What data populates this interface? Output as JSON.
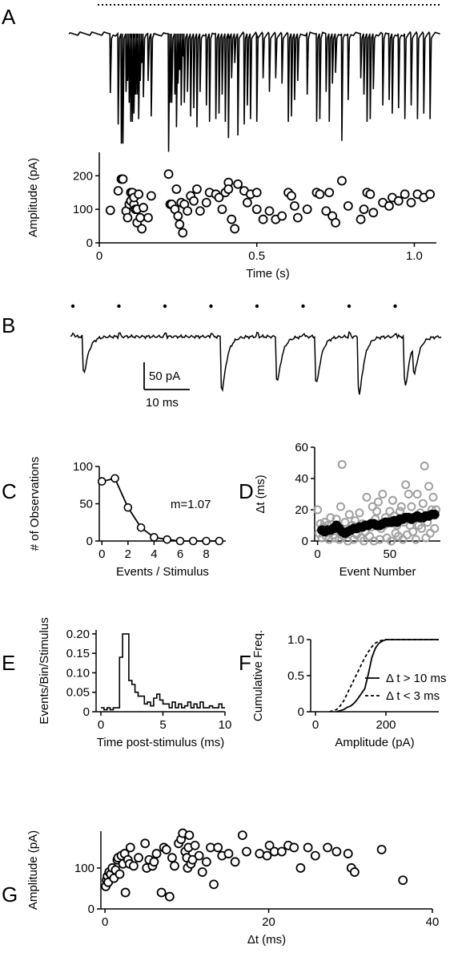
{
  "panels": [
    {
      "id": "A",
      "label": "A"
    },
    {
      "id": "B",
      "label": "B"
    },
    {
      "id": "C",
      "label": "C"
    },
    {
      "id": "D",
      "label": "D"
    },
    {
      "id": "E",
      "label": "E"
    },
    {
      "id": "F",
      "label": "F"
    },
    {
      "id": "G",
      "label": "G"
    }
  ],
  "chart_data": [
    {
      "panel": "A",
      "type": "scatter",
      "title": "",
      "xlabel": "Time (s)",
      "ylabel": "Amplitude (pA)",
      "xlim": [
        0,
        1.07
      ],
      "ylim": [
        0,
        270
      ],
      "xticks": [
        0,
        0.5,
        1.0
      ],
      "xtick_labels": [
        "0",
        "0.5",
        "1.0"
      ],
      "yticks": [
        0,
        100,
        200
      ],
      "ytick_labels": [
        "0",
        "100",
        "200"
      ],
      "marker": "open-circle",
      "grid": false,
      "x": [
        0.035,
        0.06,
        0.07,
        0.075,
        0.085,
        0.09,
        0.095,
        0.1,
        0.1,
        0.105,
        0.11,
        0.11,
        0.115,
        0.12,
        0.12,
        0.125,
        0.13,
        0.135,
        0.14,
        0.155,
        0.165,
        0.22,
        0.225,
        0.23,
        0.24,
        0.245,
        0.25,
        0.255,
        0.26,
        0.265,
        0.27,
        0.28,
        0.29,
        0.3,
        0.31,
        0.32,
        0.34,
        0.35,
        0.37,
        0.38,
        0.39,
        0.4,
        0.41,
        0.41,
        0.42,
        0.43,
        0.44,
        0.46,
        0.47,
        0.48,
        0.5,
        0.5,
        0.52,
        0.54,
        0.56,
        0.58,
        0.6,
        0.61,
        0.62,
        0.63,
        0.66,
        0.69,
        0.7,
        0.72,
        0.73,
        0.74,
        0.75,
        0.77,
        0.79,
        0.83,
        0.84,
        0.85,
        0.86,
        0.87,
        0.9,
        0.92,
        0.93,
        0.95,
        0.97,
        0.99,
        1.01,
        1.03,
        1.05
      ],
      "y": [
        97,
        155,
        190,
        190,
        95,
        75,
        115,
        150,
        125,
        150,
        115,
        135,
        100,
        100,
        60,
        145,
        75,
        42,
        105,
        75,
        140,
        205,
        115,
        115,
        100,
        160,
        80,
        55,
        120,
        30,
        115,
        95,
        140,
        125,
        160,
        95,
        120,
        150,
        145,
        135,
        100,
        150,
        180,
        160,
        70,
        42,
        175,
        155,
        120,
        145,
        100,
        150,
        70,
        95,
        70,
        80,
        150,
        140,
        110,
        75,
        100,
        150,
        145,
        95,
        150,
        80,
        60,
        185,
        110,
        70,
        100,
        150,
        145,
        90,
        120,
        110,
        135,
        125,
        145,
        120,
        145,
        135,
        145
      ]
    },
    {
      "panel": "B",
      "type": "line",
      "title": "",
      "xlabel": "",
      "ylabel": "",
      "scalebar": {
        "y_label": "50 pA",
        "x_label": "10 ms"
      },
      "stimulus_times_ms": [
        0,
        10,
        20,
        30,
        40,
        50,
        60,
        70
      ],
      "responses": [
        {
          "stim": 0,
          "delay_ms": 2.0,
          "amplitude_pA": 80
        },
        {
          "stim": 3,
          "delay_ms": 2.0,
          "amplitude_pA": 120
        },
        {
          "stim": 4,
          "delay_ms": 4.0,
          "amplitude_pA": 100
        },
        {
          "stim": 5,
          "delay_ms": 2.5,
          "amplitude_pA": 105
        },
        {
          "stim": 6,
          "delay_ms": 1.8,
          "amplitude_pA": 130
        },
        {
          "stim": 7,
          "delay_ms": 1.8,
          "amplitude_pA": 110
        },
        {
          "stim": 7,
          "delay_ms": 3.8,
          "amplitude_pA": 65
        }
      ]
    },
    {
      "panel": "C",
      "type": "line",
      "title": "",
      "xlabel": "Events / Stimulus",
      "ylabel": "# of Observations",
      "xlim": [
        -0.2,
        9.5
      ],
      "ylim": [
        0,
        100
      ],
      "xticks": [
        0,
        2,
        4,
        6,
        8
      ],
      "xtick_labels": [
        "0",
        "2",
        "4",
        "6",
        "8"
      ],
      "yticks": [
        0,
        50,
        100
      ],
      "ytick_labels": [
        "0",
        "50",
        "100"
      ],
      "annotation": "m=1.07",
      "x": [
        0,
        1,
        2,
        3,
        4,
        5,
        6,
        7,
        8,
        9
      ],
      "y": [
        80,
        84,
        45,
        18,
        5,
        2,
        0,
        0,
        0,
        0
      ]
    },
    {
      "panel": "D",
      "type": "scatter",
      "title": "",
      "xlabel": "Event Number",
      "ylabel": "Δt (ms)",
      "xlim": [
        -2,
        85
      ],
      "ylim": [
        0,
        60
      ],
      "xticks": [
        0,
        50
      ],
      "xtick_labels": [
        "0",
        "50"
      ],
      "yticks": [
        0,
        20,
        40,
        60
      ],
      "ytick_labels": [
        "0",
        "20",
        "40",
        "60"
      ],
      "series": [
        {
          "color": "#a0a0a0",
          "x": [
            0,
            1,
            2,
            3,
            4,
            5,
            6,
            7,
            8,
            9,
            10,
            11,
            12,
            13,
            14,
            15,
            16,
            17,
            18,
            19,
            20,
            21,
            22,
            23,
            24,
            25,
            26,
            27,
            28,
            29,
            30,
            31,
            32,
            33,
            34,
            35,
            36,
            37,
            38,
            39,
            40,
            41,
            42,
            43,
            44,
            45,
            46,
            47,
            48,
            49,
            50,
            51,
            52,
            53,
            54,
            55,
            56,
            57,
            58,
            59,
            60,
            61,
            62,
            63,
            64,
            65,
            66,
            67,
            68,
            69,
            70,
            71,
            72,
            73,
            74,
            75,
            76,
            77,
            78,
            79,
            80,
            81,
            82
          ],
          "y": [
            20,
            5,
            11,
            2,
            9,
            12,
            3,
            10,
            1,
            15,
            8,
            4,
            2,
            14,
            10,
            1,
            22,
            49,
            3,
            12,
            5,
            0,
            17,
            7,
            10,
            1,
            13,
            4,
            9,
            18,
            2,
            11,
            0,
            6,
            28,
            10,
            3,
            9,
            22,
            0,
            14,
            19,
            25,
            1,
            8,
            30,
            10,
            15,
            2,
            12,
            19,
            0,
            26,
            16,
            5,
            10,
            3,
            19,
            22,
            1,
            12,
            36,
            4,
            30,
            10,
            22,
            6,
            15,
            1,
            30,
            10,
            18,
            8,
            24,
            48,
            2,
            12,
            35,
            5,
            20,
            28,
            8,
            20
          ]
        },
        {
          "color": "#000000",
          "x": [
            3,
            5,
            7,
            9,
            11,
            13,
            15,
            17,
            19,
            21,
            23,
            25,
            27,
            29,
            31,
            33,
            35,
            37,
            39,
            41,
            43,
            45,
            47,
            49,
            51,
            53,
            55,
            57,
            59,
            61,
            63,
            65,
            67,
            69,
            71,
            73,
            75,
            77,
            79,
            81
          ],
          "y": [
            7,
            6,
            7,
            7,
            8,
            10,
            8,
            6,
            5,
            6,
            7,
            8,
            8,
            9,
            9,
            10,
            10,
            11,
            11,
            10,
            10,
            11,
            12,
            12,
            12,
            13,
            12,
            14,
            14,
            15,
            15,
            14,
            15,
            16,
            15,
            15,
            16,
            16,
            17,
            17
          ]
        }
      ]
    },
    {
      "panel": "E",
      "type": "line",
      "title": "",
      "xlabel": "Time post-stimulus (ms)",
      "ylabel": "Events/Bin/Stimulus",
      "xlim": [
        0,
        10
      ],
      "ylim": [
        0,
        0.21
      ],
      "xticks": [
        0,
        5,
        10
      ],
      "xtick_labels": [
        "0",
        "5",
        "10"
      ],
      "yticks": [
        0,
        0.05,
        0.1,
        0.15,
        0.2
      ],
      "ytick_labels": [
        "0",
        "0.05",
        "0.10",
        "0.15",
        "0.20"
      ],
      "bin_ms": 0.25,
      "x": [
        0,
        0.25,
        0.5,
        0.75,
        1,
        1.25,
        1.5,
        1.75,
        2,
        2.25,
        2.5,
        2.75,
        3,
        3.25,
        3.5,
        3.75,
        4,
        4.25,
        4.5,
        4.75,
        5,
        5.25,
        5.5,
        5.75,
        6,
        6.25,
        6.5,
        6.75,
        7,
        7.25,
        7.5,
        7.75,
        8,
        8.25,
        8.5,
        8.75,
        9,
        9.25,
        9.5,
        9.75
      ],
      "y": [
        0.01,
        0.005,
        0.01,
        0.005,
        0.01,
        0.01,
        0.14,
        0.2,
        0.2,
        0.08,
        0.07,
        0.05,
        0.04,
        0.04,
        0.02,
        0.025,
        0.015,
        0.035,
        0.045,
        0.03,
        0.02,
        0.02,
        0.01,
        0.025,
        0.01,
        0.02,
        0.01,
        0.015,
        0.025,
        0.01,
        0.02,
        0.01,
        0.025,
        0.01,
        0.01,
        0.015,
        0.01,
        0.01,
        0.02,
        0.01
      ]
    },
    {
      "panel": "F",
      "type": "line",
      "title": "",
      "xlabel": "Amplitude (pA)",
      "ylabel": "Cumulative Freq.",
      "xlim": [
        0,
        350
      ],
      "ylim": [
        0,
        1.0
      ],
      "xticks": [
        0,
        200
      ],
      "xtick_labels": [
        "0",
        "200"
      ],
      "yticks": [
        0,
        0.5,
        1.0
      ],
      "ytick_labels": [
        "0",
        "0.5",
        "1.0"
      ],
      "legend_position": "bottom-right",
      "series": [
        {
          "name": "Δ t > 10 ms",
          "dash": "solid",
          "x": [
            60,
            80,
            90,
            100,
            110,
            120,
            130,
            140,
            150,
            160,
            170,
            180,
            190,
            200,
            350
          ],
          "y": [
            0,
            0.03,
            0.06,
            0.08,
            0.12,
            0.18,
            0.25,
            0.32,
            0.52,
            0.75,
            0.88,
            0.95,
            0.98,
            1.0,
            1.0
          ]
        },
        {
          "name": "Δ t < 3 ms",
          "dash": "dashed",
          "x": [
            40,
            60,
            70,
            80,
            90,
            100,
            110,
            120,
            130,
            140,
            150,
            160,
            170,
            180,
            200,
            350
          ],
          "y": [
            0,
            0.03,
            0.08,
            0.15,
            0.25,
            0.35,
            0.45,
            0.55,
            0.65,
            0.75,
            0.83,
            0.9,
            0.95,
            0.98,
            1.0,
            1.0
          ]
        }
      ]
    },
    {
      "panel": "G",
      "type": "scatter",
      "title": "",
      "xlabel": "Δt (ms)",
      "ylabel": "Amplitude (pA)",
      "xlim": [
        -0.5,
        40
      ],
      "ylim": [
        0,
        190
      ],
      "xticks": [
        0,
        20,
        40
      ],
      "xtick_labels": [
        "0",
        "20",
        "40"
      ],
      "yticks": [
        0,
        100
      ],
      "ytick_labels": [
        "0",
        "100"
      ],
      "marker": "open-circle",
      "x": [
        0.1,
        0.2,
        0.3,
        0.4,
        0.5,
        0.7,
        0.9,
        1.1,
        1.3,
        1.5,
        1.6,
        1.8,
        2,
        2.2,
        2.4,
        2.5,
        2.8,
        3.0,
        3.1,
        3.5,
        4.1,
        4.9,
        5.1,
        5.4,
        5.8,
        6.0,
        6.3,
        6.9,
        7.2,
        7.5,
        7.9,
        8.2,
        8.5,
        9.0,
        9.3,
        9.5,
        9.8,
        10.0,
        10.1,
        10.2,
        10.3,
        10.5,
        10.7,
        11.0,
        11.5,
        11.9,
        12.4,
        12.9,
        13.3,
        13.8,
        14.3,
        15.1,
        15.9,
        16.8,
        17.3,
        18.9,
        19.8,
        20.1,
        20.7,
        21.6,
        22.4,
        23.1,
        23.9,
        24.8,
        25.7,
        27.2,
        28.3,
        29.7,
        30.1,
        30.5,
        33.8,
        36.4
      ],
      "y": [
        55,
        70,
        80,
        65,
        90,
        85,
        100,
        75,
        95,
        120,
        125,
        85,
        130,
        110,
        135,
        40,
        120,
        110,
        150,
        105,
        125,
        160,
        100,
        120,
        105,
        115,
        135,
        40,
        150,
        145,
        30,
        125,
        105,
        160,
        170,
        185,
        140,
        125,
        100,
        150,
        180,
        110,
        120,
        155,
        130,
        90,
        115,
        150,
        60,
        150,
        130,
        135,
        115,
        180,
        140,
        135,
        130,
        155,
        140,
        140,
        155,
        150,
        100,
        150,
        130,
        150,
        140,
        135,
        100,
        90,
        145,
        70
      ]
    }
  ]
}
